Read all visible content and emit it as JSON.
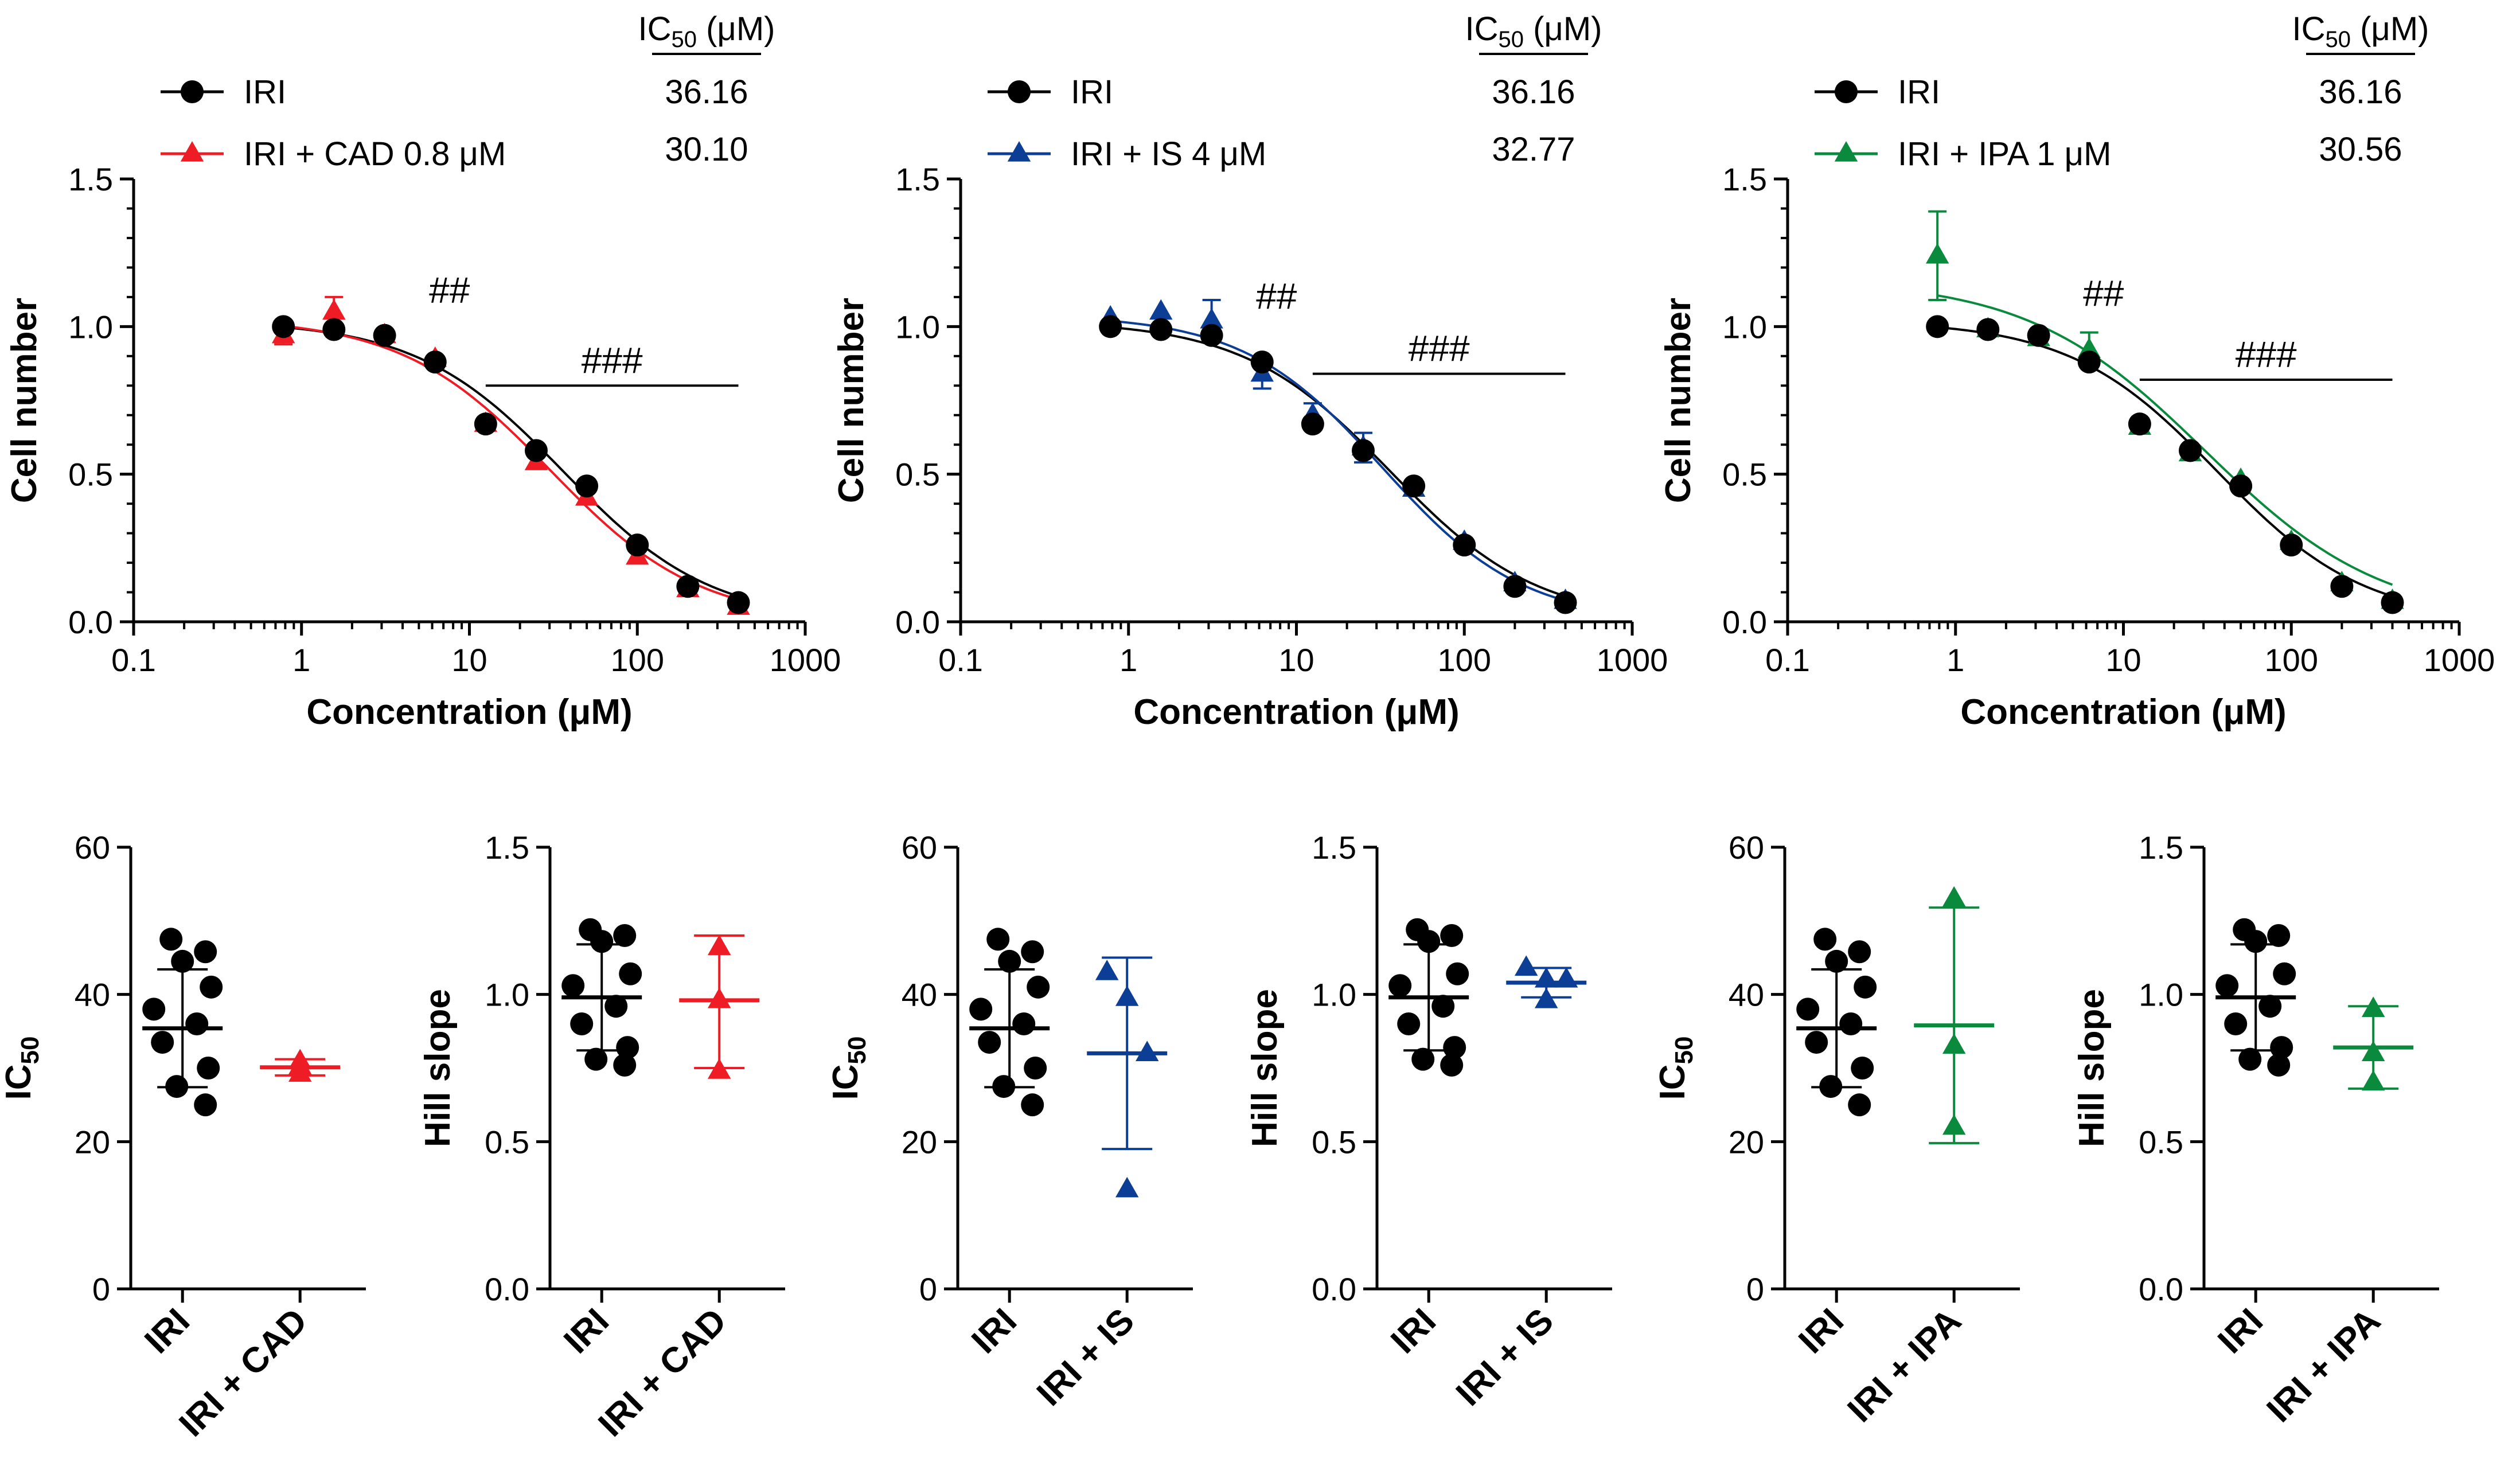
{
  "figure": {
    "ic50_header": "IC",
    "ic50_header_sub": "50",
    "ic50_header_unit": " (μM)",
    "x_axis_title": "Concentration (μM)",
    "y_axis_title": "Cell number",
    "x_tick_labels": [
      "0.1",
      "1",
      "10",
      "100",
      "1000"
    ],
    "y_tick_labels": [
      "0.0",
      "0.5",
      "1.0",
      "1.5"
    ]
  },
  "chart_data": [
    {
      "type": "line",
      "id": "curve-cad",
      "color": "#ee1c25",
      "xscale": "log",
      "xlim": [
        0.1,
        1000
      ],
      "ylim": [
        0,
        1.5
      ],
      "xlabel": "Concentration (μM)",
      "ylabel": "Cell number",
      "legend": [
        {
          "label": "IRI",
          "ic50": "36.16",
          "marker": "circle"
        },
        {
          "label": "IRI + CAD 0.8 μM",
          "ic50": "30.10",
          "marker": "triangle"
        }
      ],
      "annotations": {
        "double_hash": "##",
        "triple_hash": "###"
      },
      "significance_bar": {
        "from": 12.5,
        "to": 400,
        "y": 0.8
      },
      "double_hash_at": {
        "x": 6.25,
        "y": 1.08
      },
      "x": [
        0.78,
        1.56,
        3.125,
        6.25,
        12.5,
        25,
        50,
        100,
        200,
        400
      ],
      "series": [
        {
          "name": "IRI",
          "marker": "circle",
          "color": "#000000",
          "values": [
            1.0,
            0.99,
            0.97,
            0.88,
            0.67,
            0.58,
            0.46,
            0.26,
            0.12,
            0.065
          ],
          "errors": [
            0.02,
            0.02,
            0.02,
            0.02,
            0.02,
            0.02,
            0.02,
            0.02,
            0.02,
            0.01
          ],
          "fit": {
            "top": 1.02,
            "bottom": 0.0,
            "ic50": 36.16,
            "hill": 0.99
          }
        },
        {
          "name": "IRI + CAD 0.8 μM",
          "marker": "triangle",
          "color": "#ee1c25",
          "values": [
            0.97,
            1.05,
            0.97,
            0.89,
            0.67,
            0.54,
            0.42,
            0.22,
            0.11,
            0.05
          ],
          "errors": [
            0.03,
            0.05,
            0.02,
            0.02,
            0.02,
            0.02,
            0.02,
            0.02,
            0.02,
            0.01
          ],
          "fit": {
            "top": 1.03,
            "bottom": 0.0,
            "ic50": 30.1,
            "hill": 0.98
          }
        }
      ]
    },
    {
      "type": "line",
      "id": "curve-is",
      "color": "#0c3e96",
      "xscale": "log",
      "xlim": [
        0.1,
        1000
      ],
      "ylim": [
        0,
        1.5
      ],
      "xlabel": "Concentration (μM)",
      "ylabel": "Cell number",
      "legend": [
        {
          "label": "IRI",
          "ic50": "36.16",
          "marker": "circle"
        },
        {
          "label": "IRI + IS 4 μM",
          "ic50": "32.77",
          "marker": "triangle"
        }
      ],
      "annotations": {
        "double_hash": "##",
        "triple_hash": "###"
      },
      "significance_bar": {
        "from": 12.5,
        "to": 400,
        "y": 0.84
      },
      "double_hash_at": {
        "x": 6.25,
        "y": 1.06
      },
      "x": [
        0.78,
        1.56,
        3.125,
        6.25,
        12.5,
        25,
        50,
        100,
        200,
        400
      ],
      "series": [
        {
          "name": "IRI",
          "marker": "circle",
          "color": "#000000",
          "values": [
            1.0,
            0.99,
            0.97,
            0.88,
            0.67,
            0.58,
            0.46,
            0.26,
            0.12,
            0.065
          ],
          "errors": [
            0.02,
            0.02,
            0.02,
            0.02,
            0.02,
            0.02,
            0.02,
            0.02,
            0.02,
            0.01
          ],
          "fit": {
            "top": 1.02,
            "bottom": 0.0,
            "ic50": 36.16,
            "hill": 0.99
          }
        },
        {
          "name": "IRI + IS 4 μM",
          "marker": "triangle",
          "color": "#0c3e96",
          "values": [
            1.03,
            1.05,
            1.02,
            0.84,
            0.7,
            0.59,
            0.45,
            0.27,
            0.13,
            0.07
          ],
          "errors": [
            0.02,
            0.02,
            0.07,
            0.05,
            0.04,
            0.05,
            0.02,
            0.02,
            0.02,
            0.01
          ],
          "fit": {
            "top": 1.04,
            "bottom": 0.0,
            "ic50": 32.77,
            "hill": 1.04
          }
        }
      ]
    },
    {
      "type": "line",
      "id": "curve-ipa",
      "color": "#0a8a3c",
      "xscale": "log",
      "xlim": [
        0.1,
        1000
      ],
      "ylim": [
        0,
        1.5
      ],
      "xlabel": "Concentration (μM)",
      "ylabel": "Cell number",
      "legend": [
        {
          "label": "IRI",
          "ic50": "36.16",
          "marker": "circle"
        },
        {
          "label": "IRI + IPA 1 μM",
          "ic50": "30.56",
          "marker": "triangle"
        }
      ],
      "annotations": {
        "double_hash": "##",
        "triple_hash": "###"
      },
      "significance_bar": {
        "from": 12.5,
        "to": 400,
        "y": 0.82
      },
      "double_hash_at": {
        "x": 6.25,
        "y": 1.07
      },
      "x": [
        0.78,
        1.56,
        3.125,
        6.25,
        12.5,
        25,
        50,
        100,
        200,
        400
      ],
      "series": [
        {
          "name": "IRI",
          "marker": "circle",
          "color": "#000000",
          "values": [
            1.0,
            0.99,
            0.97,
            0.88,
            0.67,
            0.58,
            0.46,
            0.26,
            0.12,
            0.065
          ],
          "errors": [
            0.02,
            0.02,
            0.02,
            0.02,
            0.02,
            0.02,
            0.02,
            0.02,
            0.02,
            0.01
          ],
          "fit": {
            "top": 1.02,
            "bottom": 0.0,
            "ic50": 36.16,
            "hill": 0.99
          }
        },
        {
          "name": "IRI + IPA 1 μM",
          "marker": "triangle",
          "color": "#0a8a3c",
          "values": [
            1.24,
            0.99,
            0.96,
            0.92,
            0.66,
            0.57,
            0.48,
            0.27,
            0.13,
            0.07
          ],
          "errors": [
            0.15,
            0.02,
            0.02,
            0.06,
            0.02,
            0.02,
            0.02,
            0.02,
            0.02,
            0.01
          ],
          "fit": {
            "top": 1.16,
            "bottom": 0.0,
            "ic50": 30.56,
            "hill": 0.82
          }
        }
      ]
    },
    {
      "type": "scatter",
      "id": "ic50-cad",
      "ylabel": "IC",
      "ylabel_sub": "50",
      "ylim": [
        0,
        60
      ],
      "yticks": [
        "0",
        "20",
        "40",
        "60"
      ],
      "categories": [
        "IRI",
        "IRI + CAD"
      ],
      "series": [
        {
          "name": "IRI",
          "marker": "circle",
          "color": "#000000",
          "points": [
            47.5,
            45.8,
            44.5,
            41.0,
            38.0,
            36.0,
            33.5,
            30.0,
            27.5,
            25.0
          ],
          "mean": 35.4,
          "error_bar": [
            27.4,
            43.4
          ]
        },
        {
          "name": "IRI + CAD",
          "marker": "triangle",
          "color": "#ee1c25",
          "points": [
            30.9,
            30.2,
            29.2
          ],
          "mean": 30.1,
          "error_bar": [
            29.0,
            31.2
          ]
        }
      ]
    },
    {
      "type": "scatter",
      "id": "hill-cad",
      "ylabel": "Hill slope",
      "ylim": [
        0,
        1.5
      ],
      "yticks": [
        "0.0",
        "0.5",
        "1.0",
        "1.5"
      ],
      "categories": [
        "IRI",
        "IRI + CAD"
      ],
      "series": [
        {
          "name": "IRI",
          "marker": "circle",
          "color": "#000000",
          "points": [
            1.22,
            1.2,
            1.18,
            1.07,
            1.03,
            0.96,
            0.9,
            0.82,
            0.78,
            0.76
          ],
          "mean": 0.99,
          "error_bar": [
            0.81,
            1.17
          ]
        },
        {
          "name": "IRI + CAD",
          "marker": "triangle",
          "color": "#ee1c25",
          "points": [
            1.16,
            0.98,
            0.74
          ],
          "mean": 0.98,
          "error_bar": [
            0.75,
            1.2
          ]
        }
      ]
    },
    {
      "type": "scatter",
      "id": "ic50-is",
      "ylabel": "IC",
      "ylabel_sub": "50",
      "ylim": [
        0,
        60
      ],
      "yticks": [
        "0",
        "20",
        "40",
        "60"
      ],
      "categories": [
        "IRI",
        "IRI + IS"
      ],
      "series": [
        {
          "name": "IRI",
          "marker": "circle",
          "color": "#000000",
          "points": [
            47.5,
            45.8,
            44.5,
            41.0,
            38.0,
            36.0,
            33.5,
            30.0,
            27.5,
            25.0
          ],
          "mean": 35.4,
          "error_bar": [
            27.4,
            43.4
          ]
        },
        {
          "name": "IRI + IS",
          "marker": "triangle",
          "color": "#0c3e96",
          "points": [
            43.0,
            39.5,
            32.0,
            13.5
          ],
          "mean": 32.0,
          "error_bar": [
            19.0,
            45.0
          ]
        }
      ]
    },
    {
      "type": "scatter",
      "id": "hill-is",
      "ylabel": "Hill slope",
      "ylim": [
        0,
        1.5
      ],
      "yticks": [
        "0.0",
        "0.5",
        "1.0",
        "1.5"
      ],
      "categories": [
        "IRI",
        "IRI + IS"
      ],
      "series": [
        {
          "name": "IRI",
          "marker": "circle",
          "color": "#000000",
          "points": [
            1.22,
            1.2,
            1.18,
            1.07,
            1.03,
            0.96,
            0.9,
            0.82,
            0.78,
            0.76
          ],
          "mean": 0.99,
          "error_bar": [
            0.81,
            1.17
          ]
        },
        {
          "name": "IRI + IS",
          "marker": "triangle",
          "color": "#0c3e96",
          "points": [
            1.09,
            1.05,
            1.05,
            0.98
          ],
          "mean": 1.04,
          "error_bar": [
            0.99,
            1.09
          ]
        }
      ]
    },
    {
      "type": "scatter",
      "id": "ic50-ipa",
      "ylabel": "IC",
      "ylabel_sub": "50",
      "ylim": [
        0,
        60
      ],
      "yticks": [
        "0",
        "20",
        "40",
        "60"
      ],
      "categories": [
        "IRI",
        "IRI + IPA"
      ],
      "series": [
        {
          "name": "IRI",
          "marker": "circle",
          "color": "#000000",
          "points": [
            47.5,
            45.8,
            44.5,
            41.0,
            38.0,
            36.0,
            33.5,
            30.0,
            27.5,
            25.0
          ],
          "mean": 35.4,
          "error_bar": [
            27.4,
            43.4
          ]
        },
        {
          "name": "IRI + IPA",
          "marker": "triangle",
          "color": "#0a8a3c",
          "points": [
            53.0,
            33.0,
            22.0
          ],
          "mean": 35.8,
          "error_bar": [
            19.8,
            51.8
          ]
        }
      ]
    },
    {
      "type": "scatter",
      "id": "hill-ipa",
      "ylabel": "Hill slope",
      "ylim": [
        0,
        1.5
      ],
      "yticks": [
        "0.0",
        "0.5",
        "1.0",
        "1.5"
      ],
      "categories": [
        "IRI",
        "IRI + IPA"
      ],
      "series": [
        {
          "name": "IRI",
          "marker": "circle",
          "color": "#000000",
          "points": [
            1.22,
            1.2,
            1.18,
            1.07,
            1.03,
            0.96,
            0.9,
            0.82,
            0.78,
            0.76
          ],
          "mean": 0.99,
          "error_bar": [
            0.81,
            1.17
          ]
        },
        {
          "name": "IRI + IPA",
          "marker": "triangle",
          "color": "#0a8a3c",
          "points": [
            0.95,
            0.8,
            0.7
          ],
          "mean": 0.82,
          "error_bar": [
            0.68,
            0.96
          ]
        }
      ]
    }
  ]
}
